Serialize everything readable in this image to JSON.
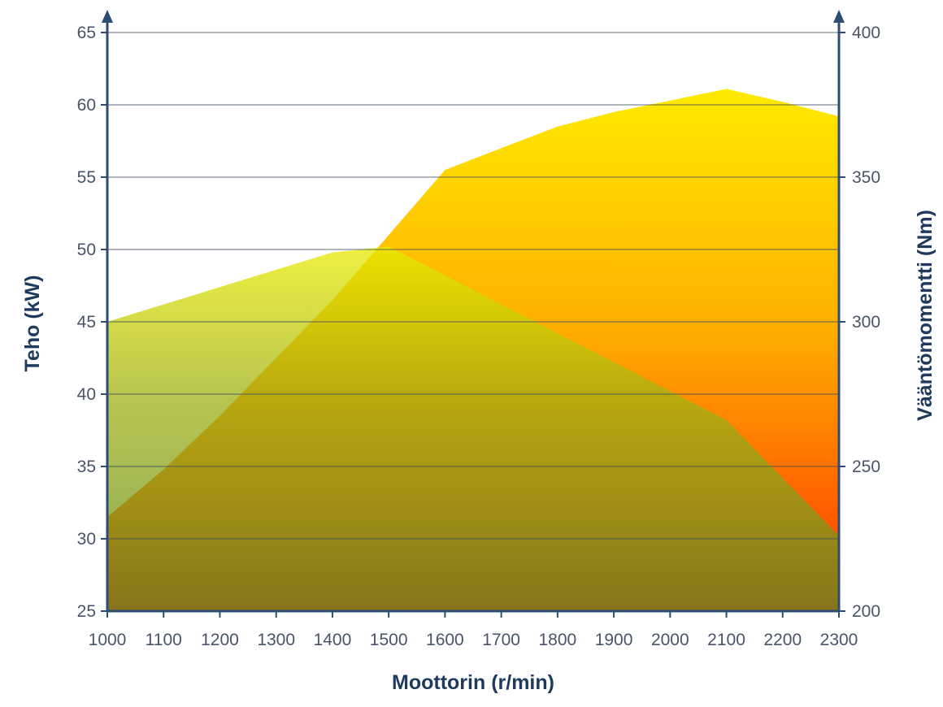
{
  "chart_data": {
    "type": "area",
    "title": "",
    "xlabel": "Moottorin (r/min)",
    "ylabel": "Teho (kW)",
    "y2label": "Vääntömomentti (Nm)",
    "x": [
      1000,
      1100,
      1200,
      1300,
      1400,
      1500,
      1600,
      1700,
      1800,
      1900,
      2000,
      2100,
      2200,
      2300
    ],
    "xlim": [
      1000,
      2300
    ],
    "ylim": [
      25,
      65
    ],
    "y2lim": [
      200,
      400
    ],
    "yticks": [
      25,
      30,
      35,
      40,
      45,
      50,
      55,
      60,
      65
    ],
    "y2ticks": [
      200,
      250,
      300,
      350,
      400
    ],
    "grid": true,
    "legend": "none",
    "series": [
      {
        "axis": "left",
        "unit": "kW",
        "x": [
          1000,
          1100,
          1200,
          1300,
          1400,
          1500,
          1600,
          1700,
          1800,
          1900,
          2000,
          2100,
          2200,
          2300
        ],
        "values": [
          31.5,
          34.8,
          38.5,
          42.5,
          46.5,
          51.0,
          55.5,
          57.0,
          58.5,
          59.5,
          60.3,
          61.1,
          60.2,
          59.2
        ],
        "color_top": "#ffea00",
        "color_bottom": "#ff3300"
      },
      {
        "axis": "right",
        "unit": "Nm",
        "x": [
          1000,
          1100,
          1200,
          1300,
          1400,
          1500,
          1600,
          1700,
          1800,
          1900,
          2000,
          2100,
          2200,
          2300
        ],
        "values": [
          300,
          306,
          312,
          318,
          324,
          326,
          316,
          306,
          296,
          286,
          276,
          266,
          246,
          226
        ],
        "color_top": "#e8ec00",
        "color_bottom": "#5f8a24",
        "opacity": 0.75
      }
    ],
    "colors": {
      "axis": "#2c4e72",
      "grid": "#3c4a5e",
      "tick_text": "#4a5468",
      "axis_title": "#1f3a5c"
    }
  }
}
